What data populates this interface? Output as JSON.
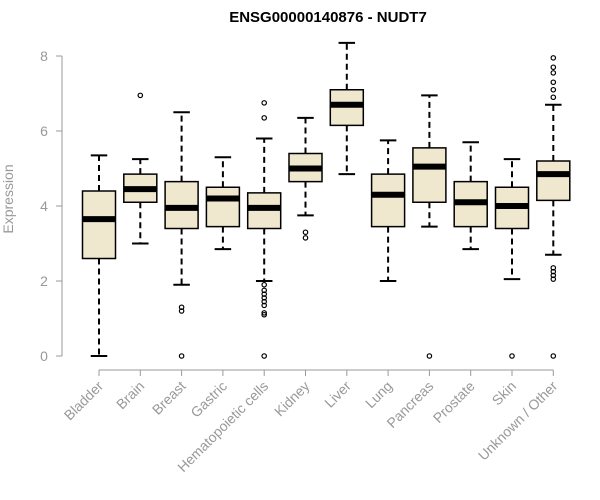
{
  "chart_data": {
    "type": "box",
    "title": "ENSG00000140876 - NUDT7",
    "xlabel": "",
    "ylabel": "Expression",
    "ylim": [
      0,
      8.4
    ],
    "yticks": [
      0,
      2,
      4,
      6,
      8
    ],
    "grid": false,
    "box_fill": "#efe8ce",
    "median_color": "#000000",
    "categories": [
      "Bladder",
      "Brain",
      "Breast",
      "Gastric",
      "Hematopoietic cells",
      "Kidney",
      "Liver",
      "Lung",
      "Pancreas",
      "Prostate",
      "Skin",
      "Unknown / Other"
    ],
    "boxes": [
      {
        "category": "Bladder",
        "whisker_low": 0.0,
        "q1": 2.6,
        "median": 3.65,
        "q3": 4.4,
        "whisker_high": 5.35,
        "outliers": []
      },
      {
        "category": "Brain",
        "whisker_low": 3.0,
        "q1": 4.1,
        "median": 4.45,
        "q3": 4.85,
        "whisker_high": 5.25,
        "outliers": [
          6.95
        ]
      },
      {
        "category": "Breast",
        "whisker_low": 1.9,
        "q1": 3.4,
        "median": 3.95,
        "q3": 4.65,
        "whisker_high": 6.5,
        "outliers": [
          1.3,
          1.2,
          0.0
        ]
      },
      {
        "category": "Gastric",
        "whisker_low": 2.85,
        "q1": 3.45,
        "median": 4.2,
        "q3": 4.5,
        "whisker_high": 5.3,
        "outliers": []
      },
      {
        "category": "Hematopoietic cells",
        "whisker_low": 2.0,
        "q1": 3.4,
        "median": 3.95,
        "q3": 4.35,
        "whisker_high": 5.8,
        "outliers": [
          6.75,
          6.35,
          1.9,
          1.75,
          1.65,
          1.55,
          1.45,
          1.35,
          1.15,
          1.1,
          0.0
        ]
      },
      {
        "category": "Kidney",
        "whisker_low": 3.75,
        "q1": 4.65,
        "median": 5.0,
        "q3": 5.4,
        "whisker_high": 6.35,
        "outliers": [
          3.3,
          3.15
        ]
      },
      {
        "category": "Liver",
        "whisker_low": 4.85,
        "q1": 6.15,
        "median": 6.7,
        "q3": 7.1,
        "whisker_high": 8.35,
        "outliers": []
      },
      {
        "category": "Lung",
        "whisker_low": 2.0,
        "q1": 3.45,
        "median": 4.3,
        "q3": 4.85,
        "whisker_high": 5.75,
        "outliers": []
      },
      {
        "category": "Pancreas",
        "whisker_low": 3.45,
        "q1": 4.1,
        "median": 5.05,
        "q3": 5.55,
        "whisker_high": 6.95,
        "outliers": [
          0.0
        ]
      },
      {
        "category": "Prostate",
        "whisker_low": 2.85,
        "q1": 3.45,
        "median": 4.1,
        "q3": 4.65,
        "whisker_high": 5.7,
        "outliers": []
      },
      {
        "category": "Skin",
        "whisker_low": 2.05,
        "q1": 3.4,
        "median": 4.0,
        "q3": 4.5,
        "whisker_high": 5.25,
        "outliers": [
          0.0
        ]
      },
      {
        "category": "Unknown / Other",
        "whisker_low": 2.7,
        "q1": 4.15,
        "median": 4.85,
        "q3": 5.2,
        "whisker_high": 6.7,
        "outliers": [
          7.95,
          7.7,
          7.55,
          7.3,
          7.1,
          6.9,
          2.35,
          2.25,
          2.15,
          2.05,
          0.0
        ]
      }
    ]
  }
}
